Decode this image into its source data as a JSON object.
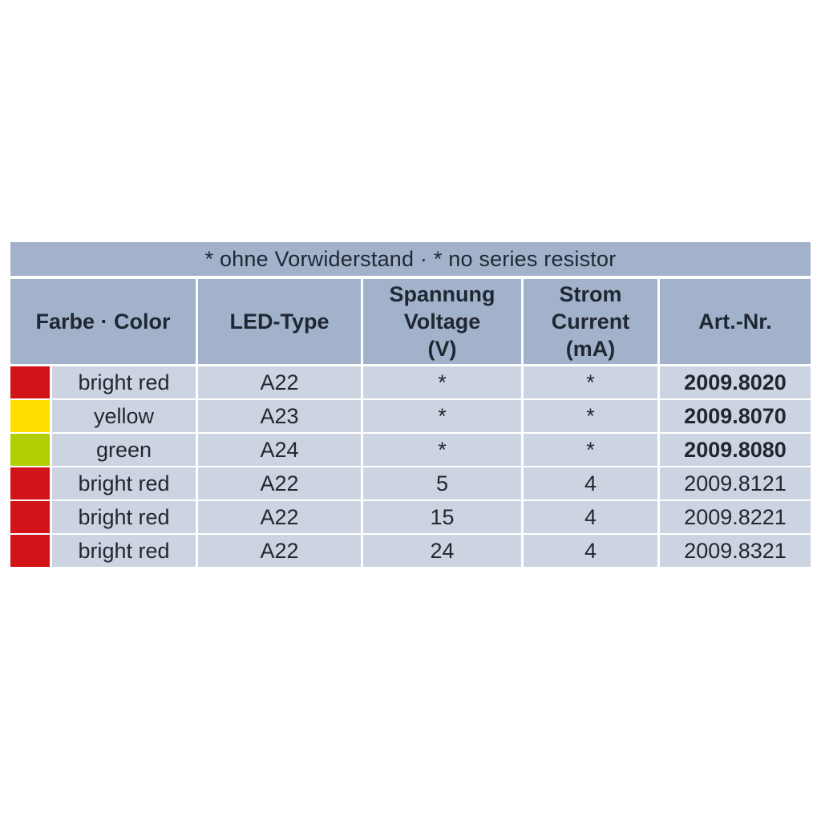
{
  "table": {
    "title": "* ohne Vorwiderstand · * no series resistor",
    "columns": [
      {
        "label": "Farbe · Color"
      },
      {
        "label": "LED-Type"
      },
      {
        "label": "Spannung\nVoltage\n(V)"
      },
      {
        "label": "Strom\nCurrent\n(mA)"
      },
      {
        "label": "Art.-Nr."
      }
    ],
    "rows": [
      {
        "swatch": "red-swatch",
        "swatch_color": "#d21318",
        "color_name": "bright red",
        "led_type": "A22",
        "voltage": "*",
        "current": "*",
        "art_nr": "2009.8020",
        "art_bold": true
      },
      {
        "swatch": "yellow-swatch",
        "swatch_color": "#ffdd00",
        "color_name": "yellow",
        "led_type": "A23",
        "voltage": "*",
        "current": "*",
        "art_nr": "2009.8070",
        "art_bold": true
      },
      {
        "swatch": "green-swatch",
        "swatch_color": "#b2cf04",
        "color_name": "green",
        "led_type": "A24",
        "voltage": "*",
        "current": "*",
        "art_nr": "2009.8080",
        "art_bold": true
      },
      {
        "swatch": "red-swatch",
        "swatch_color": "#d21318",
        "color_name": "bright red",
        "led_type": "A22",
        "voltage": "5",
        "current": "4",
        "art_nr": "2009.8121",
        "art_bold": false
      },
      {
        "swatch": "red-swatch",
        "swatch_color": "#d21318",
        "color_name": "bright red",
        "led_type": "A22",
        "voltage": "15",
        "current": "4",
        "art_nr": "2009.8221",
        "art_bold": false
      },
      {
        "swatch": "red-swatch",
        "swatch_color": "#d21318",
        "color_name": "bright red",
        "led_type": "A22",
        "voltage": "24",
        "current": "4",
        "art_nr": "2009.8321",
        "art_bold": false
      }
    ],
    "colors": {
      "header_bg": "#a3b2cb",
      "row_bg": "#cdd4e1",
      "text": "#1f2733"
    }
  }
}
